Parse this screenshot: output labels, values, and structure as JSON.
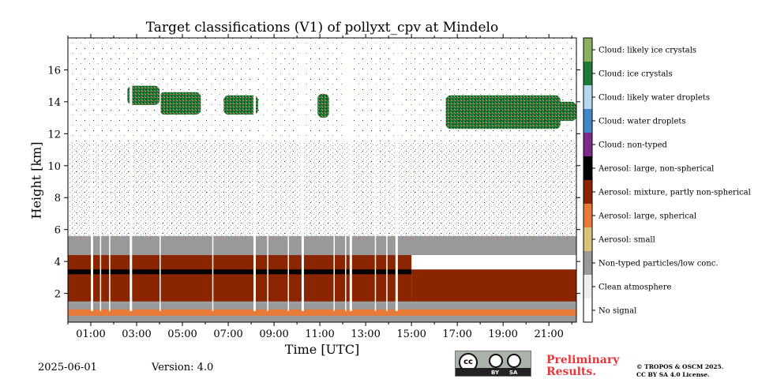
{
  "figure": {
    "title": "Target classifications (V1) of pollyxt_cpv at Mindelo",
    "date": "2025-06-01",
    "version": "Version: 4.0",
    "preliminary": [
      "Preliminary",
      "Results."
    ],
    "copyright": [
      "© TROPOS & OSCM 2025.",
      "CC BY SA 4.0 License."
    ],
    "license_badge": {
      "cc": "cc",
      "by": "BY",
      "sa": "SA"
    }
  },
  "chart_data": {
    "type": "heatmap",
    "title": "Target classifications (V1) of pollyxt_cpv at Mindelo",
    "xlabel": "Time [UTC]",
    "ylabel": "Height [km]",
    "x_range_hours": [
      0,
      22.2
    ],
    "x_ticks": [
      "01:00",
      "03:00",
      "05:00",
      "07:00",
      "09:00",
      "11:00",
      "13:00",
      "15:00",
      "17:00",
      "19:00",
      "21:00"
    ],
    "x_tick_hours": [
      1,
      3,
      5,
      7,
      9,
      11,
      13,
      15,
      17,
      19,
      21
    ],
    "ylim": [
      0.2,
      18.0
    ],
    "y_ticks": [
      2,
      4,
      6,
      8,
      10,
      12,
      14,
      16
    ],
    "grid": false,
    "colorbar": [
      {
        "label": "Cloud: likely ice crystals",
        "color": "#8ab060"
      },
      {
        "label": "Cloud: ice crystals",
        "color": "#1f7a3a"
      },
      {
        "label": "Cloud: likely water droplets",
        "color": "#b5d8f0"
      },
      {
        "label": "Cloud: water droplets",
        "color": "#3f88c5"
      },
      {
        "label": "Cloud: non-typed",
        "color": "#7f2a8a"
      },
      {
        "label": "Aerosol: large, non-spherical",
        "color": "#000000"
      },
      {
        "label": "Aerosol: mixture, partly non-spherical",
        "color": "#8b2500"
      },
      {
        "label": "Aerosol: large, spherical",
        "color": "#e87a3a"
      },
      {
        "label": "Aerosol: small",
        "color": "#d9c37a"
      },
      {
        "label": "Non-typed particles/low conc.",
        "color": "#999999"
      },
      {
        "label": "Clean atmosphere",
        "color": "#eeeeee"
      },
      {
        "label": "No signal",
        "color": "#ffffff"
      }
    ],
    "regions": [
      {
        "class": "Non-typed particles/low conc.",
        "x": [
          0,
          22.2
        ],
        "y": [
          0.2,
          1.4
        ]
      },
      {
        "class": "Aerosol: large, spherical",
        "x": [
          0,
          22.2
        ],
        "y": [
          0.6,
          1.0
        ]
      },
      {
        "class": "Non-typed particles/low conc.",
        "x": [
          0,
          22.2
        ],
        "y": [
          1.4,
          1.9
        ]
      },
      {
        "class": "Aerosol: mixture, partly non-spherical",
        "x": [
          0,
          15.0
        ],
        "y": [
          1.5,
          4.6
        ]
      },
      {
        "class": "Aerosol: mixture, partly non-spherical",
        "x": [
          15.0,
          22.2
        ],
        "y": [
          1.5,
          3.5
        ]
      },
      {
        "class": "Non-typed particles/low conc.",
        "x": [
          0,
          22.2
        ],
        "y": [
          4.4,
          5.6
        ]
      },
      {
        "class": "Aerosol: large, non-spherical",
        "x": [
          0,
          15.0
        ],
        "y": [
          3.2,
          3.5
        ]
      },
      {
        "class": "Cloud: ice crystals",
        "x": [
          2.6,
          4.0
        ],
        "y": [
          13.8,
          15.0
        ]
      },
      {
        "class": "Cloud: ice crystals",
        "x": [
          4.0,
          5.8
        ],
        "y": [
          13.2,
          14.6
        ]
      },
      {
        "class": "Cloud: ice crystals",
        "x": [
          6.8,
          8.3
        ],
        "y": [
          13.2,
          14.4
        ]
      },
      {
        "class": "Cloud: ice crystals",
        "x": [
          10.9,
          11.4
        ],
        "y": [
          13.0,
          14.5
        ]
      },
      {
        "class": "Cloud: ice crystals",
        "x": [
          16.5,
          21.5
        ],
        "y": [
          12.3,
          14.4
        ]
      },
      {
        "class": "Cloud: ice crystals",
        "x": [
          21.3,
          22.2
        ],
        "y": [
          12.8,
          14.0
        ]
      }
    ]
  }
}
